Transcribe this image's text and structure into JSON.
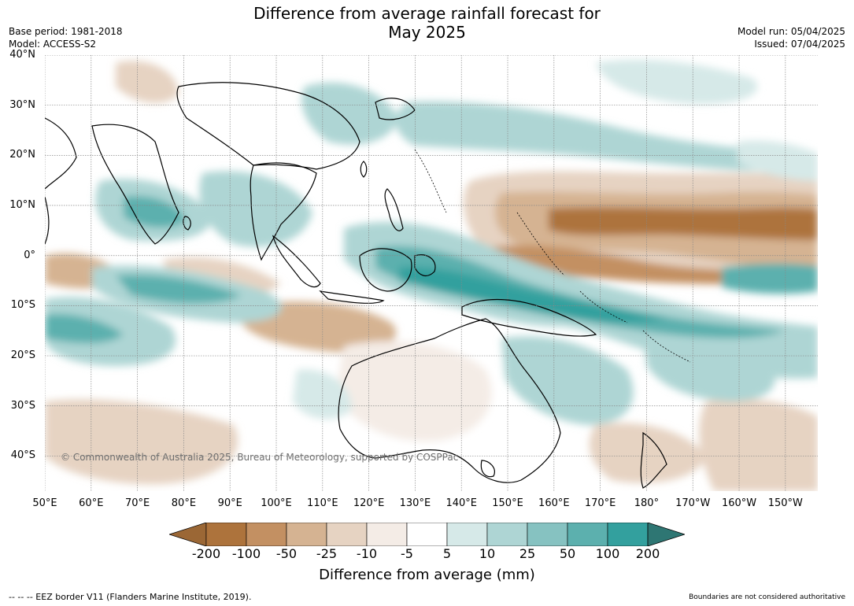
{
  "title": {
    "line1": "Difference from average rainfall forecast for",
    "line2": "May 2025"
  },
  "meta_left": {
    "base_period": "Base period: 1981-2018",
    "model": "Model: ACCESS-S2"
  },
  "meta_right": {
    "model_run": "Model run: 05/04/2025",
    "issued": "Issued: 07/04/2025"
  },
  "map": {
    "lat_labels": [
      "40°N",
      "30°N",
      "20°N",
      "10°N",
      "0°",
      "10°S",
      "20°S",
      "30°S",
      "40°S"
    ],
    "lon_labels": [
      "50°E",
      "60°E",
      "70°E",
      "80°E",
      "90°E",
      "100°E",
      "110°E",
      "120°E",
      "130°E",
      "140°E",
      "150°E",
      "160°E",
      "170°E",
      "180°",
      "170°W",
      "160°W",
      "150°W"
    ],
    "lat_values": [
      40,
      30,
      20,
      10,
      0,
      -10,
      -20,
      -30,
      -40
    ],
    "lon_values": [
      50,
      60,
      70,
      80,
      90,
      100,
      110,
      120,
      130,
      140,
      150,
      160,
      170,
      180,
      190,
      200,
      210
    ],
    "extent": {
      "lon_min": 50,
      "lon_max": 217,
      "lat_min": -47,
      "lat_max": 40
    },
    "copyright": "© Commonwealth of Australia 2025, Bureau of Meteorology, supported by COSPPac"
  },
  "colorbar": {
    "label": "Difference from average (mm)",
    "ticks": [
      "-200",
      "-100",
      "-50",
      "-25",
      "-10",
      "-5",
      "5",
      "10",
      "25",
      "50",
      "100",
      "200"
    ],
    "colors": [
      "#9b6735",
      "#ad733c",
      "#c39062",
      "#d5b392",
      "#e6d3c2",
      "#f4ece6",
      "#ffffff",
      "#d6e9e8",
      "#aed5d4",
      "#86c2c1",
      "#5cb0ae",
      "#33a09e",
      "#2e7673"
    ]
  },
  "footer": {
    "eez": "--  --  -- EEZ border V11 (Flanders Marine Institute, 2019).",
    "disclaimer": "Boundaries are not considered authoritative"
  }
}
